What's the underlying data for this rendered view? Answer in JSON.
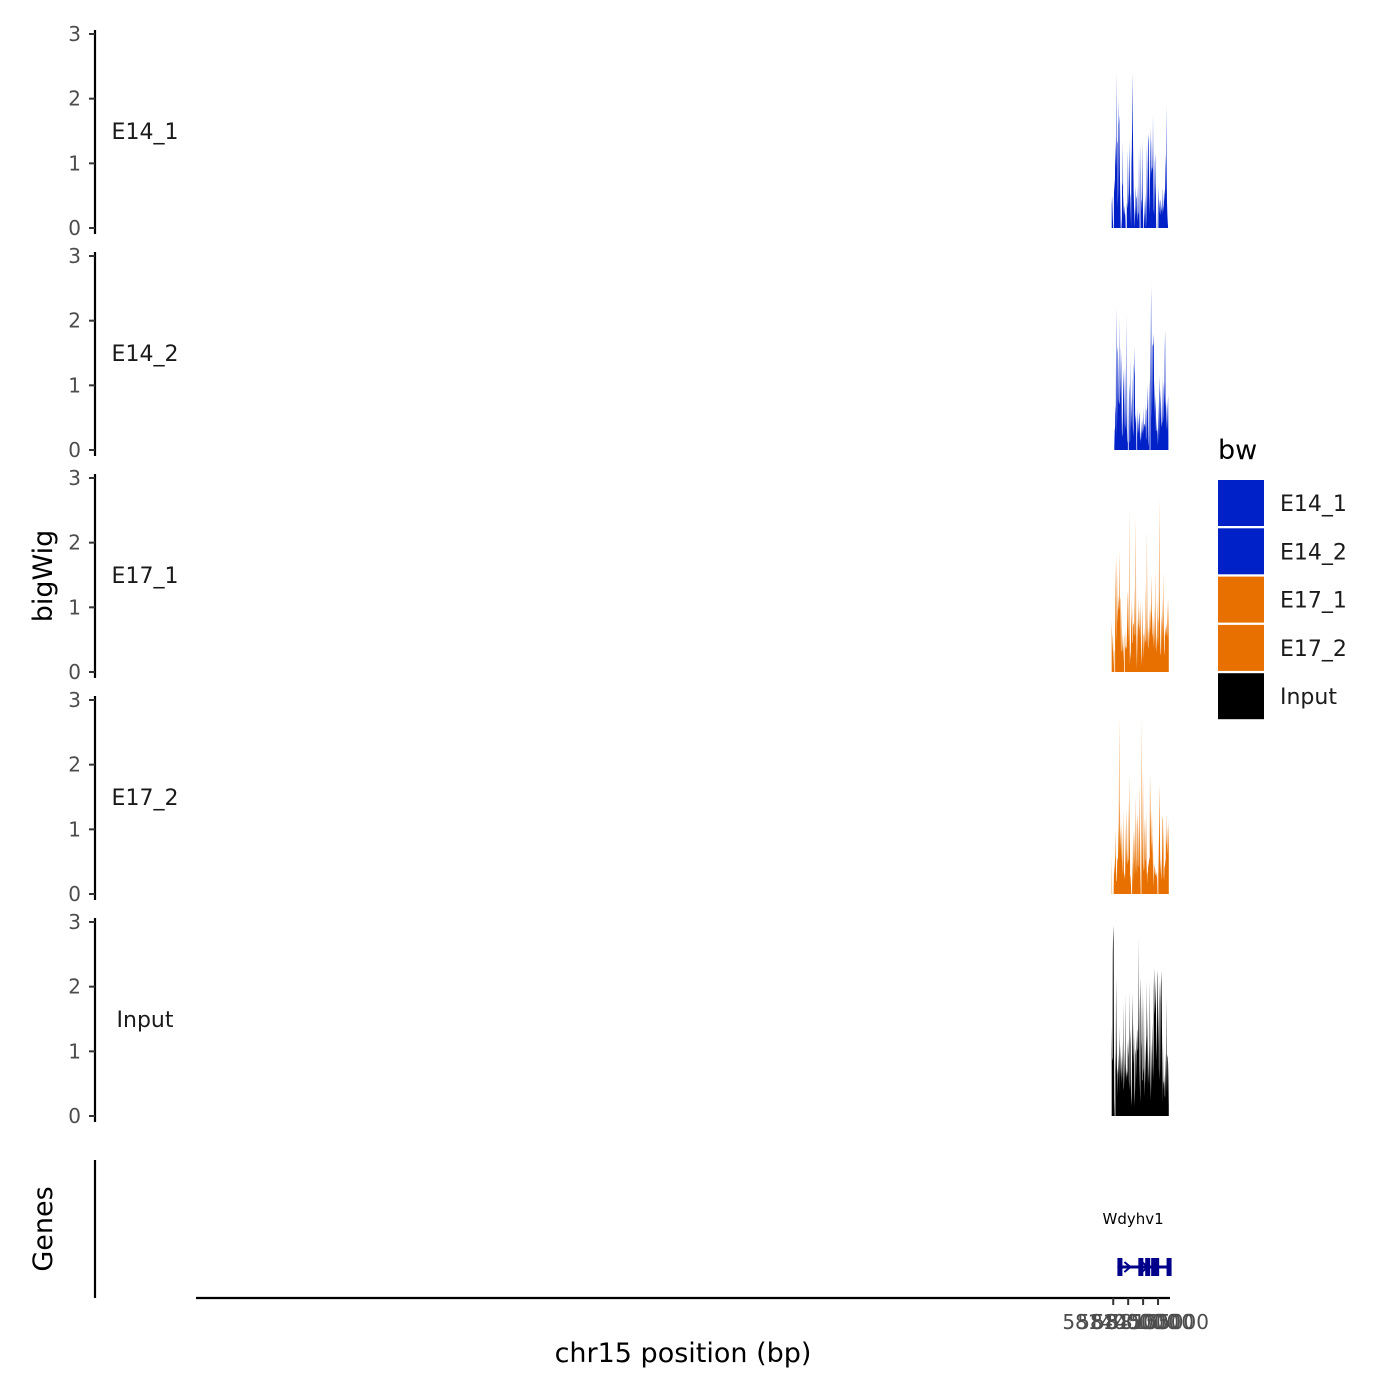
{
  "chart_data": {
    "type": "area",
    "title": "",
    "xlabel": "chr15 position (bp)",
    "ylabel": "bigWig",
    "gene_track_label": "Genes",
    "xlim": [
      57833000,
      58159000
    ],
    "x_ticks": [
      58140000,
      58145000,
      58150000,
      58155000
    ],
    "x_tick_labels": [
      "58140000",
      "58145000",
      "58150000",
      "58155000"
    ],
    "ylim": [
      0,
      3
    ],
    "y_ticks": [
      0,
      1,
      2,
      3
    ],
    "y_tick_labels": [
      "0",
      "1",
      "2",
      "3"
    ],
    "x_range": [
      58139500,
      58158600
    ],
    "legend": {
      "title": "bw",
      "position": "right",
      "entries": [
        {
          "label": "E14_1",
          "color": "#0020c8"
        },
        {
          "label": "E14_2",
          "color": "#0020c8"
        },
        {
          "label": "E17_1",
          "color": "#e87000"
        },
        {
          "label": "E17_2",
          "color": "#e87000"
        },
        {
          "label": "Input",
          "color": "#000000"
        }
      ]
    },
    "series": [
      {
        "name": "E14_1",
        "color": "#0020c8",
        "values": [
          0.35,
          0.5,
          0.3,
          0.15,
          0,
          null,
          0.45,
          0.75,
          0.55,
          0.8,
          1.3,
          0.95,
          1.45,
          0.9,
          2.4,
          1.3,
          1.35,
          0.3,
          0.6,
          2.0,
          1.6,
          1.75,
          1.25,
          0.75,
          0.3,
          0,
          null,
          0.15,
          0,
          0.65,
          0.7,
          1.35,
          0.15,
          0.5,
          0.25,
          0.35,
          0.2,
          0.25,
          0.15,
          0,
          null,
          null,
          0.4,
          0.3,
          0.4,
          1.2,
          0.8,
          0.35,
          0.55,
          1.35,
          0.9,
          0.55,
          0.45,
          0.2,
          0,
          1.0,
          1.2,
          1.7,
          2.4,
          1.5,
          0.95,
          0.6,
          0.35,
          0.2,
          0,
          0.2,
          0.3,
          0.65,
          0.45,
          0.5,
          0.25,
          0.1,
          0.25,
          0.65,
          0.2,
          0.25,
          1.25,
          0.3,
          0,
          null,
          0.3,
          1.35,
          0.25,
          0.4,
          0.45,
          1.35,
          0.6,
          0.25,
          0,
          null,
          0.45,
          0.25,
          0.15,
          0,
          0.55,
          0.35,
          0,
          0.5,
          1.3,
          0.7,
          0.3,
          1.35,
          1.45,
          1.25,
          0.65,
          0.2,
          0.5,
          1.55,
          1.2,
          0.75,
          0.95,
          0.85,
          1.4,
          0.95,
          0.9,
          1.75,
          0.75,
          0.3,
          0.2,
          0.55,
          1.0,
          1.15,
          0.7,
          0.5,
          0,
          null,
          0.4,
          0,
          null,
          null,
          0.35,
          0.65,
          0.3,
          0.45,
          0.25,
          0.2,
          0.4,
          0.45,
          0.3,
          0.25,
          0.35,
          0.65,
          0.2,
          0.35,
          0.25,
          0.4,
          0.6,
          0.5,
          0.4,
          0.9,
          1.15,
          0.5,
          1.9,
          0.75,
          0.4,
          0.2,
          0.1,
          0,
          null,
          null
        ]
      },
      {
        "name": "E14_2",
        "color": "#0020c8",
        "values": [
          null,
          null,
          null,
          null,
          null,
          null,
          null,
          0.05,
          0.3,
          0.35,
          0.7,
          0.55,
          2.2,
          1.4,
          0.2,
          0.85,
          1.6,
          1.5,
          1.1,
          0.8,
          0.7,
          0.75,
          2.05,
          0.8,
          1.1,
          1.6,
          1.3,
          0.6,
          0.2,
          0.25,
          0.5,
          0.95,
          1.25,
          0.95,
          0.25,
          0.65,
          1.3,
          0.85,
          0.4,
          0.3,
          0.65,
          2.1,
          0.3,
          0.1,
          0.15,
          null,
          0.35,
          0.85,
          1.05,
          0.1,
          0.15,
          1.45,
          0.3,
          0.85,
          0.35,
          0.75,
          1.15,
          0.45,
          0.2,
          0.35,
          1.35,
          1.15,
          1.6,
          0.85,
          0.4,
          0.5,
          0.55,
          0.05,
          null,
          0.2,
          0.65,
          0.25,
          0.3,
          0.4,
          0.5,
          0.6,
          0.4,
          0.1,
          0.3,
          0.15,
          0.2,
          0.45,
          0.25,
          0.3,
          0.5,
          0.2,
          0.65,
          0.3,
          0.35,
          0.4,
          0.4,
          0.35,
          0.7,
          0.15,
          0.2,
          0.6,
          0.65,
          1.0,
          0.6,
          0.15,
          0.05,
          0.75,
          1.1,
          0.05,
          null,
          1.05,
          1.75,
          2.55,
          1.3,
          0.45,
          0.9,
          1.65,
          1.6,
          1.65,
          1.8,
          0.85,
          0.5,
          1.1,
          0.6,
          0.85,
          0.3,
          0.3,
          0.5,
          0.25,
          0.35,
          0.05,
          0.4,
          0.75,
          0.1,
          0.35,
          1.15,
          0.85,
          0.45,
          0.95,
          0.65,
          0.45,
          0.35,
          0.45,
          1.15,
          0.4,
          0.55,
          0.95,
          1.05,
          0.7,
          1.55,
          1.85,
          0.8,
          0.65,
          0.3,
          0.55,
          0.75,
          0.3,
          0.65,
          0.85,
          0.2,
          null
        ]
      },
      {
        "name": "E17_1",
        "color": "#e87000",
        "values": [
          0.8,
          0.55,
          0.3,
          0.6,
          0.35,
          0.05,
          0.35,
          0.3,
          null,
          1.1,
          1.7,
          0.8,
          0.45,
          1.2,
          1.8,
          1.0,
          0.75,
          1.0,
          1.2,
          0.95,
          1.0,
          1.9,
          1.1,
          1.15,
          0.8,
          0.3,
          0.35,
          1.0,
          0.5,
          0.3,
          0.6,
          0.4,
          0.3,
          0.15,
          null,
          0.5,
          0.65,
          0.35,
          0.4,
          0.35,
          0.4,
          0.55,
          0.8,
          1.15,
          1.25,
          0.7,
          0.45,
          2.55,
          0.75,
          0.1,
          0.3,
          0.2,
          0.5,
          1.15,
          0.65,
          1.0,
          0.45,
          0.45,
          0.7,
          0.75,
          0.75,
          1.35,
          0.6,
          0.55,
          1.0,
          2.4,
          0.7,
          0.3,
          0.05,
          0.4,
          0.85,
          0.5,
          1.15,
          0.75,
          0.65,
          1.0,
          0.55,
          1.1,
          0.75,
          0.4,
          0.1,
          0.3,
          1.05,
          0.75,
          0.4,
          0.2,
          0.55,
          0.6,
          0.35,
          0.7,
          0.45,
          0.5,
          1.4,
          0.7,
          0.4,
          2.2,
          0.85,
          0.55,
          0.35,
          0.4,
          0.7,
          0.45,
          1.0,
          0.6,
          0.7,
          1.05,
          0.75,
          1.5,
          0.95,
          0.85,
          0.6,
          0.55,
          0.35,
          0.85,
          0.5,
          1.05,
          0.55,
          0.35,
          1.6,
          0.85,
          0.3,
          0.4,
          0.6,
          1.15,
          0.55,
          0.4,
          0.75,
          0.85,
          2.7,
          1.3,
          0.85,
          0.4,
          0.25,
          0.3,
          0.65,
          0.9,
          0.7,
          1.15,
          0.5,
          0.75,
          1.55,
          0.35,
          0.25,
          0.45,
          0.7,
          0.55,
          0.65,
          0.75,
          0.55,
          0.75,
          1.1,
          0.6,
          0.5,
          1.15,
          0.6
        ]
      },
      {
        "name": "E17_2",
        "color": "#e87000",
        "values": [
          0.6,
          0,
          null,
          null,
          null,
          0.1,
          0.45,
          0.3,
          0.5,
          0.6,
          1.0,
          0.4,
          0.2,
          0.2,
          0.5,
          0.55,
          0.55,
          0.85,
          1.1,
          2.75,
          0.6,
          1.45,
          0.7,
          1.0,
          0.5,
          0.75,
          1.1,
          0.65,
          0.3,
          0.55,
          1.3,
          0.35,
          0.25,
          0.35,
          0.2,
          0.55,
          0.9,
          1.3,
          0.7,
          0.45,
          0.5,
          0.7,
          1.45,
          0.55,
          0.5,
          0.9,
          1.85,
          0.3,
          0.25,
          0.15,
          0,
          null,
          0.1,
          0.35,
          0.5,
          1.0,
          0.55,
          0.2,
          1.0,
          0.6,
          0.3,
          1.55,
          0.6,
          0.3,
          1.0,
          1.25,
          1.05,
          0.25,
          1.1,
          0.45,
          0.4,
          1.7,
          0.95,
          0.35,
          0.05,
          null,
          0.2,
          2.7,
          1.0,
          0.45,
          1.95,
          0.5,
          0.35,
          0.4,
          0.9,
          1.2,
          0.55,
          0.5,
          1.3,
          0.5,
          0.3,
          0.35,
          0.15,
          0.5,
          0.4,
          0.5,
          0.55,
          0.55,
          1.85,
          1.35,
          1.0,
          0.65,
          0.95,
          1.3,
          0.4,
          0.9,
          0.5,
          0.1,
          0.3,
          0.35,
          0.45,
          0.4,
          0.3,
          0.3,
          0.25,
          0.35,
          0.3,
          0.05,
          null,
          0.25,
          0.5,
          0.9,
          1.7,
          1.05,
          0.55,
          0.3,
          0.55,
          0.3,
          0.2,
          1.15,
          1.2,
          0.55,
          1.1,
          0.3,
          0.2,
          0.45,
          0.4,
          0.55,
          0.45,
          1.25,
          0.75,
          0.85,
          1.05,
          0.6,
          0.75,
          1.15,
          0.6
        ]
      },
      {
        "name": "Input",
        "color": "#000000",
        "values": [
          1.4,
          0.85,
          0.9,
          2.5,
          2.95,
          2.7,
          1.3,
          0.25,
          0,
          null,
          0.7,
          1.0,
          2.15,
          1.25,
          0.75,
          0.3,
          0.75,
          0.65,
          0.95,
          0.55,
          1.2,
          0.35,
          1.4,
          0.6,
          0.75,
          1.1,
          0.5,
          0.65,
          0.95,
          0.55,
          1.15,
          0.45,
          0.4,
          1.75,
          0.5,
          1.05,
          0.45,
          1.9,
          0.85,
          0.6,
          0.75,
          0.55,
          0.7,
          0.6,
          1.15,
          0.9,
          1.2,
          0.55,
          0.4,
          1.95,
          1.1,
          1.35,
          0.55,
          0.3,
          0.15,
          0.65,
          1.35,
          1.9,
          0.7,
          1.45,
          0.8,
          1.25,
          0.45,
          0.15,
          0.55,
          1.05,
          0.95,
          1.25,
          0.55,
          1.35,
          1.3,
          1.0,
          1.05,
          2.75,
          1.15,
          1.85,
          0.8,
          0.45,
          0.2,
          2.15,
          1.8,
          1.15,
          1.05,
          0.55,
          0.55,
          2.0,
          0.75,
          0.65,
          1.85,
          0.55,
          0.3,
          1.1,
          0.85,
          0.5,
          1.1,
          1.25,
          2.1,
          0.4,
          1.65,
          0.9,
          0.5,
          0.75,
          1.1,
          0.45,
          2.1,
          1.35,
          0.55,
          0.25,
          0.55,
          1.15,
          0.6,
          0.95,
          1.45,
          0.8,
          0.55,
          1.95,
          2.3,
          1.75,
          1.55,
          1.85,
          2.1,
          1.65,
          1.05,
          0.85,
          1.5,
          2.15,
          2.25,
          1.1,
          1.75,
          0.75,
          0.55,
          2.1,
          1.75,
          2.1,
          0.65,
          2.05,
          2.25,
          1.45,
          1.05,
          0.2,
          1.1,
          0.5,
          0.55,
          0.4,
          0.65,
          0.3,
          0.3,
          1.0,
          0.45,
          1.85,
          0.85,
          0.35,
          0.9,
          0.95,
          0.8,
          0.6,
          0.15
        ]
      }
    ],
    "gene": {
      "name": "Wdyhv1",
      "strand": "+",
      "start": 58141400,
      "end": 58158600,
      "color": "#00008b",
      "exons": [
        [
          58141400,
          58141550
        ],
        [
          58148400,
          58148480
        ],
        [
          58150700,
          58150760
        ],
        [
          58152700,
          58152830
        ],
        [
          58153700,
          58153790
        ],
        [
          58157850,
          58158600
        ]
      ]
    }
  }
}
